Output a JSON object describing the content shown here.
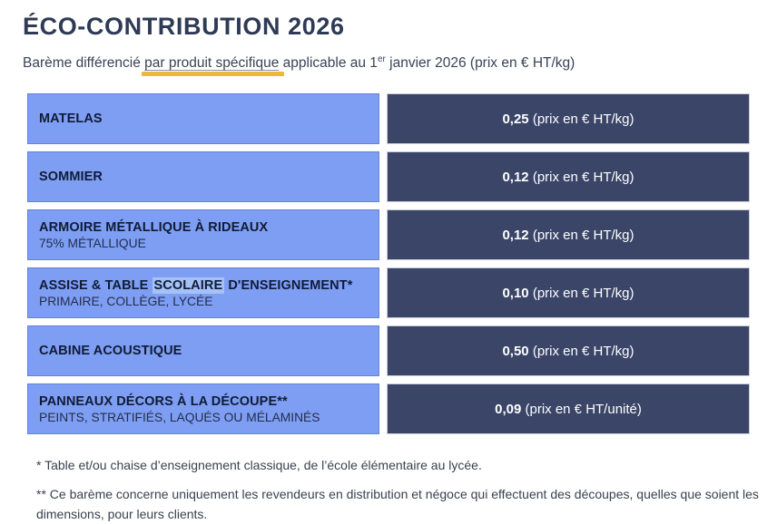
{
  "header": {
    "title": "ÉCO-CONTRIBUTION 2026",
    "subtitle_prefix": "Barème différencié ",
    "subtitle_underlined": "par produit spécifique",
    "subtitle_mid": " applicable au 1",
    "subtitle_sup": "er",
    "subtitle_suffix": " janvier 2026 (prix en € HT/kg)"
  },
  "table": {
    "rows": [
      {
        "label": "MATELAS",
        "sublabel": "",
        "highlight": "",
        "price": "0,25",
        "unit": "(prix en € HT/kg)"
      },
      {
        "label": "SOMMIER",
        "sublabel": "",
        "highlight": "",
        "price": "0,12",
        "unit": "(prix en € HT/kg)"
      },
      {
        "label": "ARMOIRE MÉTALLIQUE À RIDEAUX",
        "sublabel": "75% MÉTALLIQUE",
        "highlight": "",
        "price": "0,12",
        "unit": "(prix en € HT/kg)"
      },
      {
        "label": "ASSISE & TABLE SCOLAIRE D'ENSEIGNEMENT*",
        "sublabel": "PRIMAIRE, COLLÈGE, LYCÉE",
        "highlight": "SCOLAIRE",
        "price": "0,10",
        "unit": "(prix en € HT/kg)"
      },
      {
        "label": "CABINE ACOUSTIQUE",
        "sublabel": "",
        "highlight": "",
        "price": "0,50",
        "unit": "(prix en € HT/kg)"
      },
      {
        "label": "PANNEAUX DÉCORS À LA DÉCOUPE**",
        "sublabel": "PEINTS, STRATIFIÉS, LAQUÉS OU MÉLAMINÉS",
        "highlight": "",
        "price": "0,09",
        "unit": "(prix en € HT/unité)"
      }
    ]
  },
  "footnotes": [
    "* Table et/ou chaise d’enseignement classique, de l’école élémentaire au lycée.",
    "** Ce barème concerne uniquement les revendeurs en distribution et négoce qui effectuent des découpes, quelles que soient les dimensions, pour leurs clients."
  ],
  "colors": {
    "accent_gold": "#E8B93D",
    "cell_light_blue": "#7E9EF3",
    "cell_dark_navy": "#3A4568",
    "highlight_blue": "#A5C2F6",
    "title_navy": "#2F3A56"
  }
}
